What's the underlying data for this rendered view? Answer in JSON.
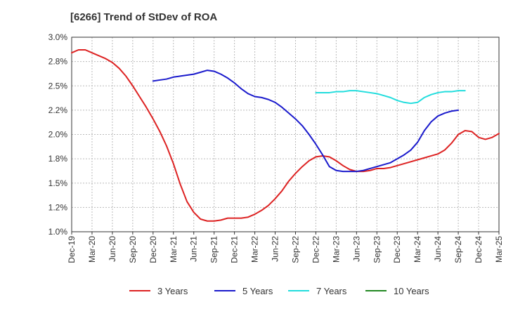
{
  "chart_data": {
    "type": "line",
    "title": "[6266]  Trend of StDev of ROA",
    "xlabel": "",
    "ylabel": "",
    "x_tick_labels": [
      "Dec-19",
      "Mar-20",
      "Jun-20",
      "Sep-20",
      "Dec-20",
      "Mar-21",
      "Jun-21",
      "Sep-21",
      "Dec-21",
      "Mar-22",
      "Jun-22",
      "Sep-22",
      "Dec-22",
      "Mar-23",
      "Jun-23",
      "Sep-23",
      "Dec-23",
      "Mar-24",
      "Jun-24",
      "Sep-24",
      "Dec-24",
      "Mar-25"
    ],
    "y_tick_labels": [
      "3.0%",
      "2.8%",
      "2.5%",
      "2.2%",
      "2.0%",
      "1.8%",
      "1.5%",
      "1.2%",
      "1.0%"
    ],
    "ylim": [
      1.0,
      3.0
    ],
    "grid": true,
    "legend_position": "bottom",
    "series": [
      {
        "name": "3 Years",
        "color": "#dd2222",
        "start_index": 0,
        "values": [
          2.84,
          2.87,
          2.87,
          2.84,
          2.81,
          2.78,
          2.74,
          2.68,
          2.6,
          2.5,
          2.39,
          2.28,
          2.16,
          2.03,
          1.88,
          1.7,
          1.49,
          1.31,
          1.2,
          1.13,
          1.11,
          1.11,
          1.12,
          1.14,
          1.14,
          1.14,
          1.15,
          1.18,
          1.22,
          1.27,
          1.34,
          1.42,
          1.52,
          1.6,
          1.67,
          1.73,
          1.77,
          1.78,
          1.77,
          1.73,
          1.68,
          1.64,
          1.62,
          1.62,
          1.63,
          1.65,
          1.65,
          1.66,
          1.68,
          1.7,
          1.72,
          1.74,
          1.76,
          1.78,
          1.8,
          1.84,
          1.91,
          2.0,
          2.04,
          2.03,
          1.97,
          1.95,
          1.97,
          2.01
        ]
      },
      {
        "name": "5 Years",
        "color": "#1a1acc",
        "start_index": 12,
        "values": [
          2.55,
          2.56,
          2.57,
          2.59,
          2.6,
          2.61,
          2.62,
          2.64,
          2.66,
          2.65,
          2.62,
          2.58,
          2.53,
          2.47,
          2.42,
          2.39,
          2.38,
          2.36,
          2.33,
          2.28,
          2.22,
          2.16,
          2.09,
          2.0,
          1.9,
          1.79,
          1.67,
          1.63,
          1.62,
          1.62,
          1.62,
          1.63,
          1.65,
          1.67,
          1.69,
          1.71,
          1.75,
          1.79,
          1.84,
          1.92,
          2.04,
          2.13,
          2.19,
          2.22,
          2.24,
          2.25
        ]
      },
      {
        "name": "7 Years",
        "color": "#22dddd",
        "start_index": 36,
        "values": [
          2.43,
          2.43,
          2.43,
          2.44,
          2.44,
          2.45,
          2.45,
          2.44,
          2.43,
          2.42,
          2.4,
          2.38,
          2.35,
          2.33,
          2.32,
          2.33,
          2.38,
          2.41,
          2.43,
          2.44,
          2.44,
          2.45,
          2.45
        ]
      },
      {
        "name": "10 Years",
        "color": "#228822",
        "start_index": 0,
        "values": []
      }
    ]
  }
}
